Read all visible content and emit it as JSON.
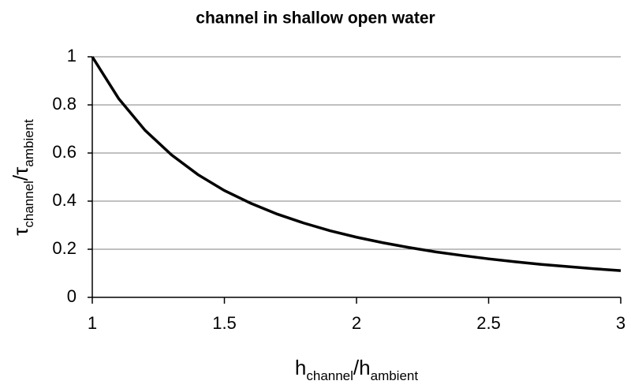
{
  "chart_data": {
    "type": "line",
    "title": "channel in shallow open water",
    "xlabel": [
      "h",
      "channel",
      "/h",
      "ambient"
    ],
    "ylabel": [
      "τ",
      "channel",
      "/τ",
      "ambient"
    ],
    "x": [
      1,
      1.1,
      1.2,
      1.3,
      1.4,
      1.5,
      1.6,
      1.7,
      1.8,
      1.9,
      2,
      2.1,
      2.2,
      2.3,
      2.4,
      2.5,
      2.6,
      2.7,
      2.8,
      2.9,
      3
    ],
    "values": [
      1,
      0.826,
      0.694,
      0.592,
      0.51,
      0.444,
      0.391,
      0.346,
      0.309,
      0.277,
      0.25,
      0.227,
      0.207,
      0.189,
      0.174,
      0.16,
      0.148,
      0.137,
      0.128,
      0.119,
      0.111
    ],
    "color": "#000000",
    "xlim": [
      1,
      3
    ],
    "xticks": [
      1,
      1.5,
      2,
      2.5,
      3
    ],
    "ylim": [
      0,
      1
    ],
    "yticks": [
      0,
      0.2,
      0.4,
      0.6,
      0.8,
      1
    ],
    "grid": true
  }
}
